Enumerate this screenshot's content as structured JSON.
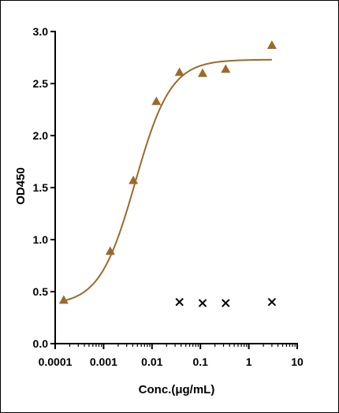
{
  "chart_data": {
    "type": "scatter",
    "xlabel": "Conc.(μg/mL)",
    "ylabel": "OD450",
    "x_scale": "log",
    "xlim": [
      0.0001,
      10
    ],
    "ylim": [
      0,
      3.0
    ],
    "x_ticks": [
      0.0001,
      0.001,
      0.01,
      0.1,
      1,
      10
    ],
    "x_tick_labels": [
      "0.0001",
      "0.001",
      "0.01",
      "0.1",
      "1",
      "10"
    ],
    "y_ticks": [
      0,
      0.5,
      1.0,
      1.5,
      2.0,
      2.5,
      3.0
    ],
    "y_tick_labels": [
      "0.0",
      "0.5",
      "1.0",
      "1.5",
      "2.0",
      "2.5",
      "3.0"
    ],
    "grid": false,
    "legend": "none",
    "series": [
      {
        "marker": "triangle",
        "color": "#9B6A2A",
        "fit": "sigmoidal 4PL",
        "points": [
          {
            "x": 0.00015,
            "y": 0.42
          },
          {
            "x": 0.00137,
            "y": 0.89
          },
          {
            "x": 0.00412,
            "y": 1.57
          },
          {
            "x": 0.0123,
            "y": 2.33
          },
          {
            "x": 0.037,
            "y": 2.61
          },
          {
            "x": 0.111,
            "y": 2.6
          },
          {
            "x": 0.333,
            "y": 2.64
          },
          {
            "x": 3.0,
            "y": 2.87
          }
        ],
        "fit_params": {
          "bottom": 0.37,
          "top": 2.73,
          "ec50": 0.0045,
          "hill": 1.18
        }
      },
      {
        "marker": "cross",
        "color": "#000000",
        "points": [
          {
            "x": 0.037,
            "y": 0.4
          },
          {
            "x": 0.111,
            "y": 0.39
          },
          {
            "x": 0.333,
            "y": 0.39
          },
          {
            "x": 3.0,
            "y": 0.4
          }
        ]
      }
    ]
  }
}
